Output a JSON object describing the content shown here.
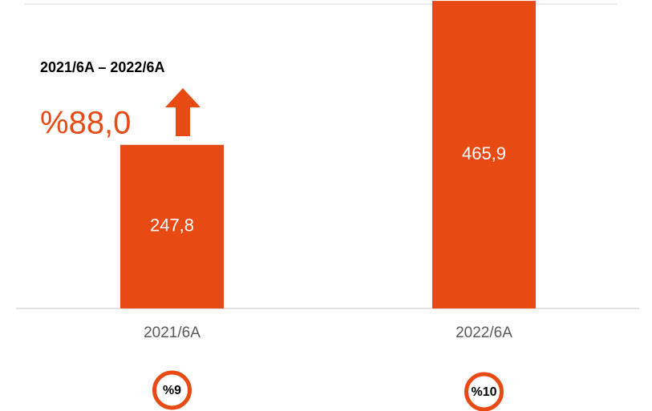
{
  "chart_data": {
    "type": "bar",
    "categories": [
      "2021/6A",
      "2022/6A"
    ],
    "values": [
      247.8,
      465.9
    ],
    "value_labels": [
      "247,8",
      "465,9"
    ],
    "color": "#e84a14",
    "ylim": [
      0,
      466
    ],
    "growth_period": "2021/6A – 2022/6A",
    "growth_label": "%88,0",
    "badges": [
      "%9",
      "%10"
    ]
  }
}
